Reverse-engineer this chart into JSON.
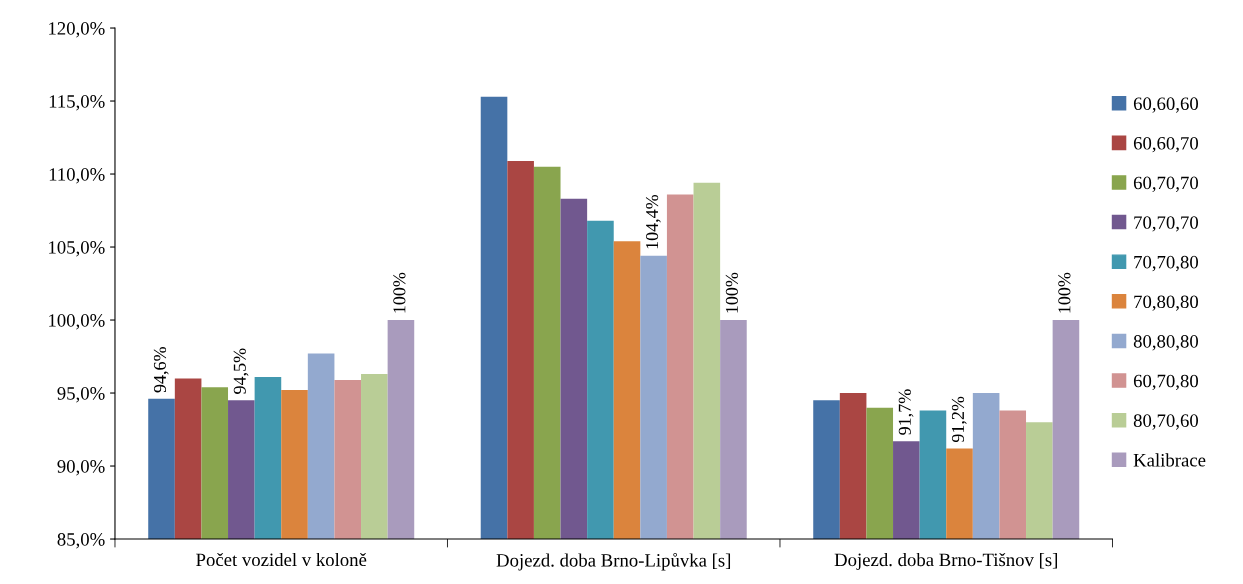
{
  "chart_data": {
    "type": "bar",
    "categories": [
      "Počet vozidel v koloně",
      "Dojezd. doba Brno-Lipůvka [s]",
      "Dojezd. doba Brno-Tišnov [s]"
    ],
    "series": [
      {
        "name": "60,60,60",
        "color": "#4572a7",
        "values": [
          94.6,
          115.3,
          94.5
        ],
        "value_labels": [
          "94,6%",
          null,
          null
        ]
      },
      {
        "name": "60,60,70",
        "color": "#aa4643",
        "values": [
          96.0,
          110.9,
          95.0
        ]
      },
      {
        "name": "60,70,70",
        "color": "#89a54e",
        "values": [
          95.4,
          110.5,
          94.0
        ]
      },
      {
        "name": "70,70,70",
        "color": "#71588f",
        "values": [
          94.5,
          108.3,
          91.7
        ],
        "value_labels": [
          "94,5%",
          null,
          "91,7%"
        ]
      },
      {
        "name": "70,70,80",
        "color": "#4198af",
        "values": [
          96.1,
          106.8,
          93.8
        ]
      },
      {
        "name": "70,80,80",
        "color": "#db843d",
        "values": [
          95.2,
          105.4,
          91.2
        ],
        "value_labels": [
          null,
          null,
          "91,2%"
        ]
      },
      {
        "name": "80,80,80",
        "color": "#93a9cf",
        "values": [
          97.7,
          104.4,
          95.0
        ],
        "value_labels": [
          null,
          "104,4%",
          null
        ]
      },
      {
        "name": "60,70,80",
        "color": "#d19392",
        "values": [
          95.9,
          108.6,
          93.8
        ]
      },
      {
        "name": "80,70,60",
        "color": "#b9cd96",
        "values": [
          96.3,
          109.4,
          93.0
        ]
      },
      {
        "name": "Kalibrace",
        "color": "#a99bbd",
        "values": [
          100,
          100,
          100
        ],
        "value_labels": [
          "100%",
          "100%",
          "100%"
        ]
      }
    ],
    "ylim": [
      85,
      120
    ],
    "yticks": [
      {
        "value": 85,
        "label": "85,0%"
      },
      {
        "value": 90,
        "label": "90,0%"
      },
      {
        "value": 95,
        "label": "95,0%"
      },
      {
        "value": 100,
        "label": "100,0%"
      },
      {
        "value": 105,
        "label": "105,0%"
      },
      {
        "value": 110,
        "label": "110,0%"
      },
      {
        "value": 115,
        "label": "115,0%"
      },
      {
        "value": 120,
        "label": "120,0%"
      }
    ],
    "grid": false,
    "legend": "right"
  }
}
